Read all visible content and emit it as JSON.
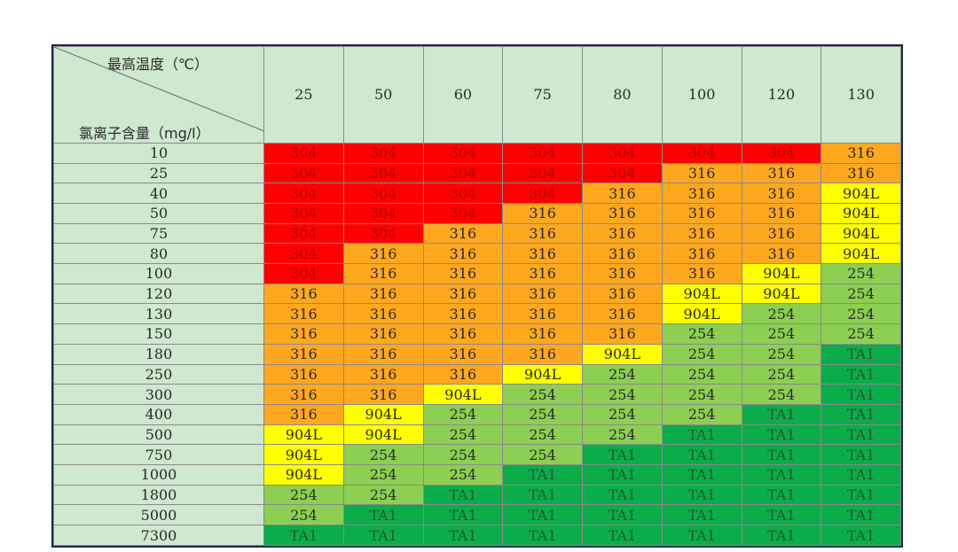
{
  "table": {
    "corner_top": "最高温度（℃）",
    "corner_bottom": "氯离子含量（mg/l）",
    "columns": [
      "25",
      "50",
      "60",
      "75",
      "80",
      "100",
      "120",
      "130"
    ],
    "rows": [
      {
        "label": "10",
        "cells": [
          "304",
          "304",
          "304",
          "304",
          "304",
          "304",
          "304",
          "316"
        ]
      },
      {
        "label": "25",
        "cells": [
          "304",
          "304",
          "304",
          "304",
          "304",
          "316",
          "316",
          "316"
        ]
      },
      {
        "label": "40",
        "cells": [
          "304",
          "304",
          "304",
          "304",
          "316",
          "316",
          "316",
          "904L"
        ]
      },
      {
        "label": "50",
        "cells": [
          "304",
          "304",
          "304",
          "316",
          "316",
          "316",
          "316",
          "904L"
        ]
      },
      {
        "label": "75",
        "cells": [
          "304",
          "304",
          "316",
          "316",
          "316",
          "316",
          "316",
          "904L"
        ]
      },
      {
        "label": "80",
        "cells": [
          "304",
          "316",
          "316",
          "316",
          "316",
          "316",
          "316",
          "904L"
        ]
      },
      {
        "label": "100",
        "cells": [
          "304",
          "316",
          "316",
          "316",
          "316",
          "316",
          "904L",
          "254"
        ]
      },
      {
        "label": "120",
        "cells": [
          "316",
          "316",
          "316",
          "316",
          "316",
          "904L",
          "904L",
          "254"
        ]
      },
      {
        "label": "130",
        "cells": [
          "316",
          "316",
          "316",
          "316",
          "316",
          "904L",
          "254",
          "254"
        ]
      },
      {
        "label": "150",
        "cells": [
          "316",
          "316",
          "316",
          "316",
          "316",
          "254",
          "254",
          "254"
        ]
      },
      {
        "label": "180",
        "cells": [
          "316",
          "316",
          "316",
          "316",
          "904L",
          "254",
          "254",
          "TA1"
        ]
      },
      {
        "label": "250",
        "cells": [
          "316",
          "316",
          "316",
          "904L",
          "254",
          "254",
          "254",
          "TA1"
        ]
      },
      {
        "label": "300",
        "cells": [
          "316",
          "316",
          "904L",
          "254",
          "254",
          "254",
          "254",
          "TA1"
        ]
      },
      {
        "label": "400",
        "cells": [
          "316",
          "904L",
          "254",
          "254",
          "254",
          "254",
          "TA1",
          "TA1"
        ]
      },
      {
        "label": "500",
        "cells": [
          "904L",
          "904L",
          "254",
          "254",
          "254",
          "TA1",
          "TA1",
          "TA1"
        ]
      },
      {
        "label": "750",
        "cells": [
          "904L",
          "254",
          "254",
          "254",
          "TA1",
          "TA1",
          "TA1",
          "TA1"
        ]
      },
      {
        "label": "1000",
        "cells": [
          "904L",
          "254",
          "254",
          "TA1",
          "TA1",
          "TA1",
          "TA1",
          "TA1"
        ]
      },
      {
        "label": "1800",
        "cells": [
          "254",
          "254",
          "TA1",
          "TA1",
          "TA1",
          "TA1",
          "TA1",
          "TA1"
        ]
      },
      {
        "label": "5000",
        "cells": [
          "254",
          "TA1",
          "TA1",
          "TA1",
          "TA1",
          "TA1",
          "TA1",
          "TA1"
        ]
      },
      {
        "label": "7300",
        "cells": [
          "TA1",
          "TA1",
          "TA1",
          "TA1",
          "TA1",
          "TA1",
          "TA1",
          "TA1"
        ]
      }
    ],
    "cell_colors": {
      "304": {
        "fill": "#ff0000",
        "text": "#b00000"
      },
      "316": {
        "fill": "#ffa81f",
        "text": "#2a2a2a"
      },
      "904L": {
        "fill": "#ffff00",
        "text": "#2a2a2a"
      },
      "254": {
        "fill": "#8ccf52",
        "text": "#2a2a2a"
      },
      "TA1": {
        "fill": "#0aad4a",
        "text": "#1d5a2a"
      }
    }
  }
}
